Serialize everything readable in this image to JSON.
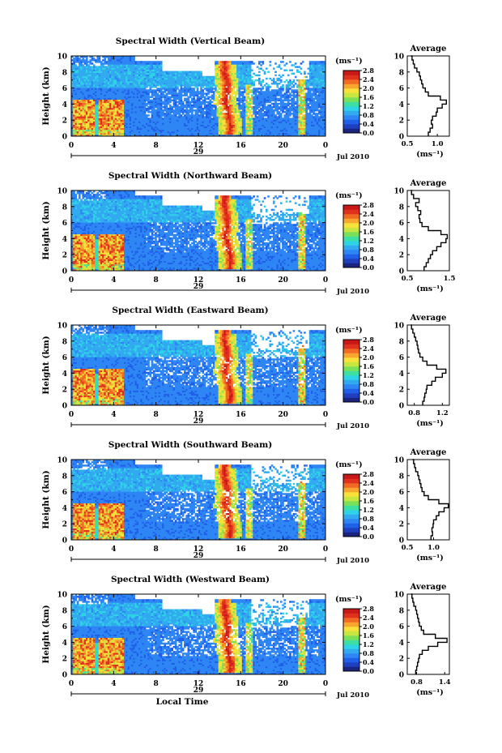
{
  "colors": {
    "scale": [
      "#1a237e",
      "#1f3fbf",
      "#2060e8",
      "#2e86f5",
      "#32aaf0",
      "#2fd3e6",
      "#3de0a0",
      "#7ae05a",
      "#c8e640",
      "#f7e13a",
      "#f7a630",
      "#f06a24",
      "#e0301e",
      "#c81818"
    ],
    "missing": "#ffffff"
  },
  "shared": {
    "ylabel": "Height (km)",
    "y_ticks": [
      "0",
      "2",
      "4",
      "6",
      "8",
      "10"
    ],
    "x_ticks": [
      "0",
      "4",
      "8",
      "12",
      "16",
      "20",
      "0"
    ],
    "date_label": "29",
    "month_label": "Jul 2010",
    "unit_label": "(ms⁻¹)",
    "colorbar_ticks": [
      "0.0",
      "0.4",
      "0.8",
      "1.2",
      "1.6",
      "2.0",
      "2.4",
      "2.8"
    ],
    "avg_title": "Average",
    "avg_xlabel": "(ms⁻¹)",
    "xlabel_bottom": "Local Time"
  },
  "chart_data": [
    {
      "type": "heatmap",
      "title": "Spectral Width (Vertical Beam)",
      "xlabel": "",
      "ylabel": "Height (km)",
      "xlim": [
        0,
        24
      ],
      "ylim": [
        0,
        10
      ],
      "zlim": [
        0.0,
        2.8
      ],
      "avg_profile": {
        "xlim": [
          0.5,
          1.2
        ],
        "x_ticks": [
          "0.5",
          "1.0"
        ],
        "height": [
          0,
          0.5,
          1,
          1.5,
          2,
          2.5,
          3,
          3.5,
          4,
          4.5,
          5,
          5.5,
          6,
          6.5,
          7,
          7.5,
          8,
          8.5,
          9,
          9.5,
          10
        ],
        "value": [
          0.85,
          0.88,
          0.92,
          0.9,
          0.92,
          0.98,
          1.0,
          1.08,
          1.15,
          1.05,
          0.85,
          0.8,
          0.76,
          0.74,
          0.72,
          0.7,
          0.66,
          0.62,
          0.6,
          0.58,
          0.56
        ]
      }
    },
    {
      "type": "heatmap",
      "title": "Spectral Width (Northward Beam)",
      "xlabel": "",
      "ylabel": "Height (km)",
      "xlim": [
        0,
        24
      ],
      "ylim": [
        0,
        10
      ],
      "zlim": [
        0.0,
        2.8
      ],
      "avg_profile": {
        "xlim": [
          0.5,
          1.5
        ],
        "x_ticks": [
          "0.5",
          "1.5"
        ],
        "height": [
          0,
          0.5,
          1,
          1.5,
          2,
          2.5,
          3,
          3.5,
          4,
          4.5,
          5,
          5.5,
          6,
          6.5,
          7,
          7.5,
          8,
          8.5,
          9,
          9.5,
          10
        ],
        "value": [
          0.9,
          0.95,
          1.0,
          1.05,
          1.1,
          1.2,
          1.3,
          1.42,
          1.45,
          1.3,
          1.0,
          0.85,
          0.8,
          0.78,
          0.82,
          0.75,
          0.7,
          0.78,
          0.65,
          0.6,
          0.62
        ]
      }
    },
    {
      "type": "heatmap",
      "title": "Spectral Width (Eastward Beam)",
      "xlabel": "",
      "ylabel": "Height (km)",
      "xlim": [
        0,
        24
      ],
      "ylim": [
        0,
        10
      ],
      "zlim": [
        0.0,
        2.8
      ],
      "avg_profile": {
        "xlim": [
          0.7,
          1.3
        ],
        "x_ticks": [
          "0.8",
          "1.2"
        ],
        "height": [
          0,
          0.5,
          1,
          1.5,
          2,
          2.5,
          3,
          3.5,
          4,
          4.5,
          5,
          5.5,
          6,
          6.5,
          7,
          7.5,
          8,
          8.5,
          9,
          9.5,
          10
        ],
        "value": [
          0.92,
          0.94,
          0.95,
          0.97,
          0.98,
          1.05,
          1.1,
          1.2,
          1.25,
          1.12,
          0.98,
          0.92,
          0.88,
          0.86,
          0.85,
          0.84,
          0.82,
          0.8,
          0.78,
          0.76,
          0.75
        ]
      }
    },
    {
      "type": "heatmap",
      "title": "Spectral Width (Southward Beam)",
      "xlabel": "",
      "ylabel": "Height (km)",
      "xlim": [
        0,
        24
      ],
      "ylim": [
        0,
        10
      ],
      "zlim": [
        0.0,
        2.8
      ],
      "avg_profile": {
        "xlim": [
          0.5,
          1.3
        ],
        "x_ticks": [
          "0.5",
          "1.0"
        ],
        "height": [
          0,
          0.5,
          1,
          1.5,
          2,
          2.5,
          3,
          3.5,
          4,
          4.5,
          5,
          5.5,
          6,
          6.5,
          7,
          7.5,
          8,
          8.5,
          9,
          9.5,
          10
        ],
        "value": [
          0.95,
          0.98,
          0.97,
          0.99,
          1.0,
          1.05,
          1.1,
          1.2,
          1.28,
          1.1,
          0.9,
          0.82,
          0.78,
          0.76,
          0.74,
          0.72,
          0.7,
          0.66,
          0.64,
          0.62,
          0.6
        ]
      }
    },
    {
      "type": "heatmap",
      "title": "Spectral Width (Westward Beam)",
      "xlabel": "Local Time",
      "ylabel": "Height (km)",
      "xlim": [
        0,
        24
      ],
      "ylim": [
        0,
        10
      ],
      "zlim": [
        0.0,
        2.8
      ],
      "avg_profile": {
        "xlim": [
          0.6,
          1.5
        ],
        "x_ticks": [
          "0.8",
          "1.4"
        ],
        "height": [
          0,
          0.5,
          1,
          1.5,
          2,
          2.5,
          3,
          3.5,
          4,
          4.5,
          5,
          5.5,
          6,
          6.5,
          7,
          7.5,
          8,
          8.5,
          9,
          9.5,
          10
        ],
        "value": [
          0.78,
          0.8,
          0.82,
          0.84,
          0.86,
          0.92,
          1.05,
          1.25,
          1.45,
          1.2,
          0.95,
          0.9,
          0.86,
          0.84,
          0.82,
          0.8,
          0.78,
          0.74,
          0.72,
          0.7,
          0.68
        ]
      }
    }
  ]
}
